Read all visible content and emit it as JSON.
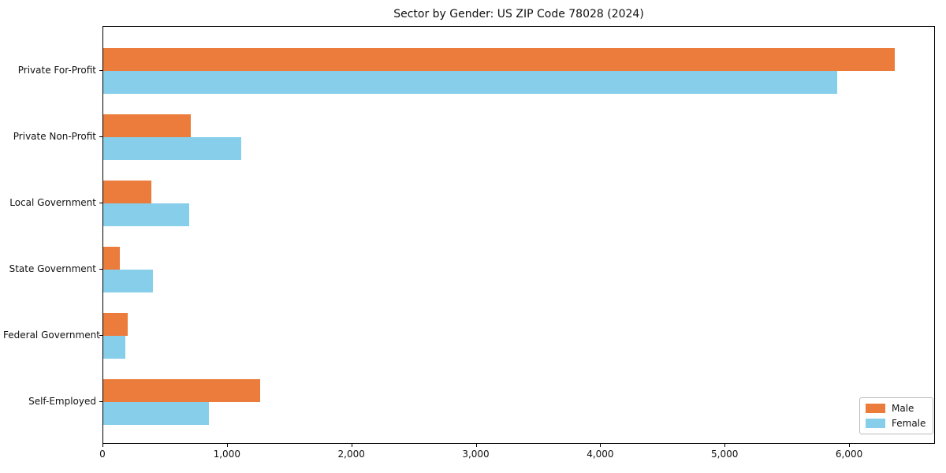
{
  "chart_data": {
    "type": "bar",
    "orientation": "horizontal",
    "title": "Sector by Gender: US ZIP Code 78028 (2024)",
    "categories": [
      "Private For-Profit",
      "Private Non-Profit",
      "Local Government",
      "State Government",
      "Federal Government",
      "Self-Employed"
    ],
    "series": [
      {
        "name": "Male",
        "color": "#ec7c3c",
        "values": [
          6360,
          700,
          385,
          130,
          195,
          1260
        ]
      },
      {
        "name": "Female",
        "color": "#87ceeb",
        "values": [
          5900,
          1110,
          690,
          400,
          180,
          850
        ]
      }
    ],
    "xlabel": "",
    "ylabel": "",
    "xlim": [
      0,
      6690
    ],
    "xticks": [
      {
        "value": 0,
        "label": "0"
      },
      {
        "value": 1000,
        "label": "1,000"
      },
      {
        "value": 2000,
        "label": "2,000"
      },
      {
        "value": 3000,
        "label": "3,000"
      },
      {
        "value": 4000,
        "label": "4,000"
      },
      {
        "value": 5000,
        "label": "5,000"
      },
      {
        "value": 6000,
        "label": "6,000"
      }
    ],
    "grid": false,
    "legend": {
      "position": "lower right",
      "entries": [
        "Male",
        "Female"
      ]
    }
  }
}
